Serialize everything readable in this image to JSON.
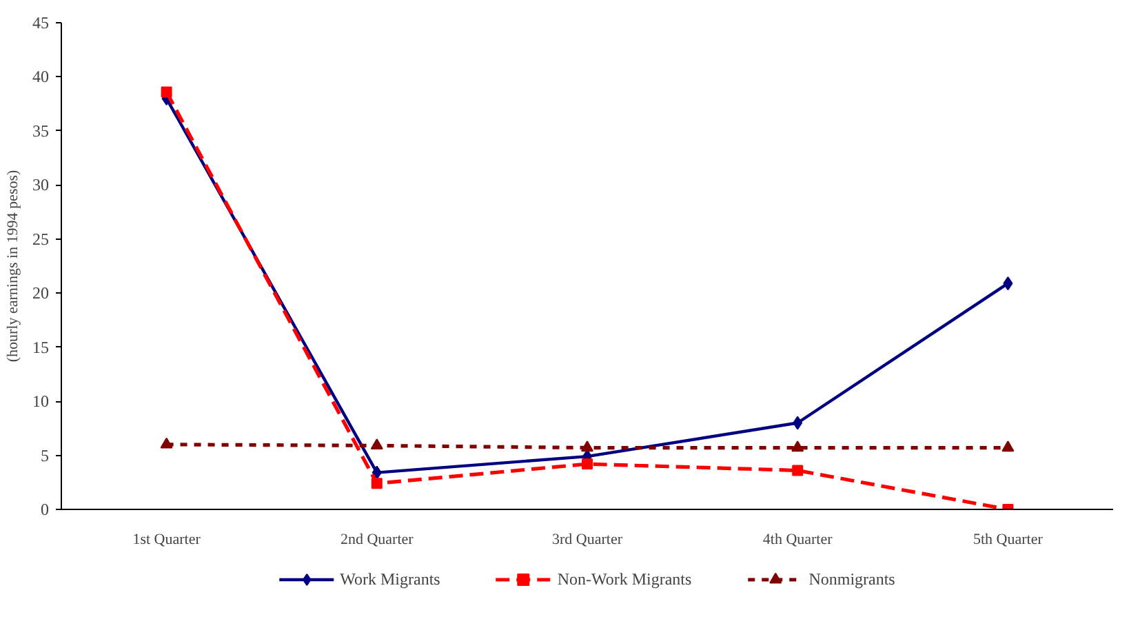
{
  "chart_data": {
    "type": "line",
    "ylabel": "(hourly earnings in 1994 pesos)",
    "categories": [
      "1st Quarter",
      "2nd Quarter",
      "3rd Quarter",
      "4th Quarter",
      "5th Quarter"
    ],
    "ylim": [
      0,
      45
    ],
    "yticks": [
      0,
      5,
      10,
      15,
      20,
      25,
      30,
      35,
      40,
      45
    ],
    "grid": false,
    "legend": "bottom",
    "series": [
      {
        "name": "Work Migrants",
        "color": "#000080",
        "marker": "diamond",
        "line_style": "solid",
        "values": [
          38.0,
          3.4,
          4.9,
          8.0,
          20.9
        ]
      },
      {
        "name": "Non-Work Migrants",
        "color": "#ff0000",
        "marker": "square",
        "line_style": "dashed",
        "values": [
          38.6,
          2.4,
          4.2,
          3.6,
          0.0
        ]
      },
      {
        "name": "Nonmigrants",
        "color": "#800000",
        "marker": "triangle",
        "line_style": "dotted",
        "values": [
          6.0,
          5.9,
          5.7,
          5.7,
          5.7
        ]
      }
    ]
  }
}
